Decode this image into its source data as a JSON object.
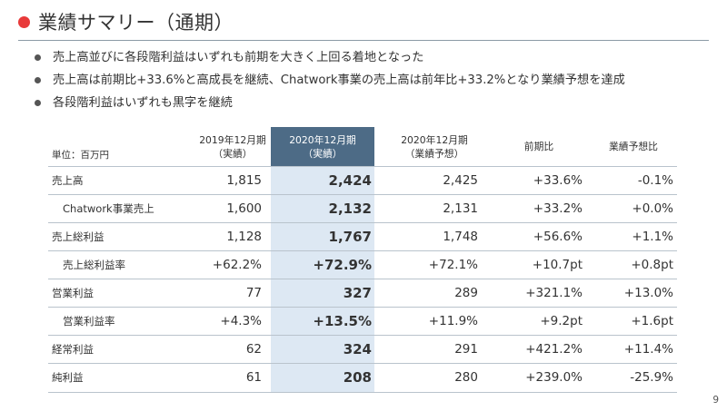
{
  "slide": {
    "title": "業績サマリー（通期）",
    "page_number": "9",
    "accent_color": "#e83a3a",
    "highlight_color": "#4d6b86"
  },
  "bullets": [
    "売上高並びに各段階利益はいずれも前期を大きく上回る着地となった",
    "売上高は前期比+33.6%と高成長を継続、Chatwork事業の売上高は前年比+33.2%となり業績予想を達成",
    "各段階利益はいずれも黒字を継続"
  ],
  "table": {
    "unit_label": "単位：百万円",
    "headers": [
      {
        "line1": "2019年12月期",
        "line2": "（実績）"
      },
      {
        "line1": "2020年12月期",
        "line2": "（実績）"
      },
      {
        "line1": "2020年12月期",
        "line2": "（業績予想）"
      },
      {
        "line1": "前期比",
        "line2": ""
      },
      {
        "line1": "業績予想比",
        "line2": ""
      }
    ],
    "rows": [
      {
        "label": "売上高",
        "sub": false,
        "values": [
          "1,815",
          "2,424",
          "2,425",
          "+33.6%",
          "-0.1%"
        ]
      },
      {
        "label": "Chatwork事業売上",
        "sub": true,
        "values": [
          "1,600",
          "2,132",
          "2,131",
          "+33.2%",
          "+0.0%"
        ]
      },
      {
        "label": "売上総利益",
        "sub": false,
        "values": [
          "1,128",
          "1,767",
          "1,748",
          "+56.6%",
          "+1.1%"
        ]
      },
      {
        "label": "売上総利益率",
        "sub": true,
        "values": [
          "+62.2%",
          "+72.9%",
          "+72.1%",
          "+10.7pt",
          "+0.8pt"
        ]
      },
      {
        "label": "営業利益",
        "sub": false,
        "values": [
          "77",
          "327",
          "289",
          "+321.1%",
          "+13.0%"
        ]
      },
      {
        "label": "営業利益率",
        "sub": true,
        "values": [
          "+4.3%",
          "+13.5%",
          "+11.9%",
          "+9.2pt",
          "+1.6pt"
        ]
      },
      {
        "label": "経常利益",
        "sub": false,
        "values": [
          "62",
          "324",
          "291",
          "+421.2%",
          "+11.4%"
        ]
      },
      {
        "label": "純利益",
        "sub": false,
        "values": [
          "61",
          "208",
          "280",
          "+239.0%",
          "-25.9%"
        ]
      }
    ]
  }
}
